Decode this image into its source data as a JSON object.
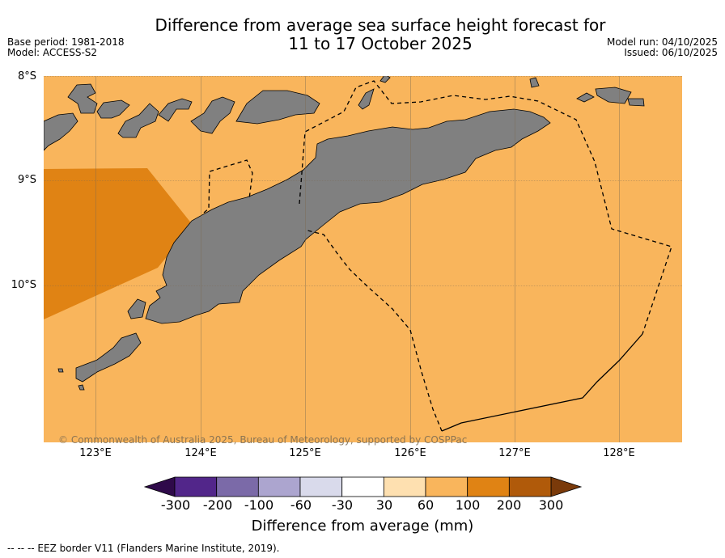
{
  "header": {
    "title_line1": "Difference from average sea surface height forecast for",
    "title_line2": "11 to 17 October 2025",
    "base_period": "Base period: 1981-2018",
    "model": "Model: ACCESS-S2",
    "model_run": "Model run: 04/10/2025",
    "issued": "Issued: 06/10/2025"
  },
  "map": {
    "lat_labels": [
      "8°S",
      "9°S",
      "10°S"
    ],
    "lon_labels": [
      "123°E",
      "124°E",
      "125°E",
      "126°E",
      "127°E",
      "128°E"
    ],
    "copyright": "© Commonwealth of Australia 2025, Bureau of Meteorology, supported by COSPPac",
    "colors": {
      "ocean_60_100": "#f9b55c",
      "ocean_100_200": "#e08314",
      "land": "#808080",
      "eez_line": "#000000"
    }
  },
  "colorbar": {
    "ticks": [
      "-300",
      "-200",
      "-100",
      "-60",
      "-30",
      "30",
      "60",
      "100",
      "200",
      "300"
    ],
    "colors": [
      "#2f0a4a",
      "#52268a",
      "#7b6aa8",
      "#aca5cf",
      "#d9daeb",
      "#ffffff",
      "#fee0b0",
      "#f9b55c",
      "#e08314",
      "#b05a0a",
      "#7a3a0a"
    ],
    "title": "Difference from average (mm)"
  },
  "legend": {
    "eez_label": "-- -- -- EEZ border V11 (Flanders Marine Institute, 2019)."
  }
}
